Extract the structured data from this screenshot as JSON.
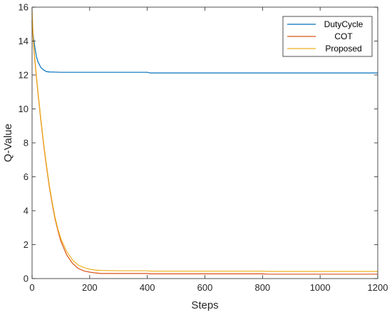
{
  "chart_data": {
    "type": "line",
    "title": "",
    "xlabel": "Steps",
    "ylabel": "Q-Value",
    "xlim": [
      0,
      1200
    ],
    "ylim": [
      0,
      16
    ],
    "xticks": [
      0,
      200,
      400,
      600,
      800,
      1000,
      1200
    ],
    "yticks": [
      0,
      2,
      4,
      6,
      8,
      10,
      12,
      14,
      16
    ],
    "grid": false,
    "legend_position": "top-right",
    "series": [
      {
        "name": "DutyCycle",
        "color": "#0072BD",
        "x": [
          0,
          5,
          10,
          15,
          20,
          30,
          40,
          50,
          60,
          80,
          100,
          150,
          200,
          300,
          400,
          410,
          500,
          600,
          700,
          800,
          900,
          1000,
          1100,
          1200
        ],
        "y": [
          15.2,
          14.2,
          13.6,
          13.1,
          12.8,
          12.45,
          12.3,
          12.2,
          12.18,
          12.17,
          12.16,
          12.16,
          12.16,
          12.16,
          12.16,
          12.12,
          12.12,
          12.12,
          12.12,
          12.12,
          12.12,
          12.12,
          12.12,
          12.12
        ]
      },
      {
        "name": "COT",
        "color": "#D95319",
        "x": [
          0,
          5,
          10,
          20,
          30,
          40,
          50,
          60,
          70,
          80,
          90,
          100,
          120,
          140,
          160,
          180,
          200,
          220,
          240,
          300,
          400,
          410,
          500,
          600,
          700,
          800,
          820,
          900,
          1000,
          1100,
          1200
        ],
        "y": [
          15.2,
          13.8,
          12.8,
          11.0,
          9.4,
          7.9,
          6.6,
          5.4,
          4.4,
          3.5,
          2.8,
          2.2,
          1.4,
          0.9,
          0.6,
          0.45,
          0.38,
          0.33,
          0.3,
          0.3,
          0.3,
          0.28,
          0.28,
          0.28,
          0.28,
          0.28,
          0.26,
          0.26,
          0.26,
          0.26,
          0.26
        ]
      },
      {
        "name": "Proposed",
        "color": "#EDB120",
        "x": [
          0,
          5,
          10,
          20,
          30,
          40,
          50,
          60,
          70,
          80,
          90,
          100,
          120,
          140,
          160,
          180,
          200,
          220,
          240,
          300,
          400,
          410,
          500,
          600,
          700,
          800,
          820,
          900,
          1000,
          1100,
          1200
        ],
        "y": [
          15.8,
          13.9,
          12.9,
          11.1,
          9.5,
          8.0,
          6.7,
          5.5,
          4.5,
          3.6,
          2.9,
          2.35,
          1.6,
          1.1,
          0.8,
          0.65,
          0.55,
          0.5,
          0.48,
          0.46,
          0.46,
          0.44,
          0.44,
          0.44,
          0.44,
          0.44,
          0.42,
          0.42,
          0.42,
          0.42,
          0.42
        ]
      }
    ]
  }
}
